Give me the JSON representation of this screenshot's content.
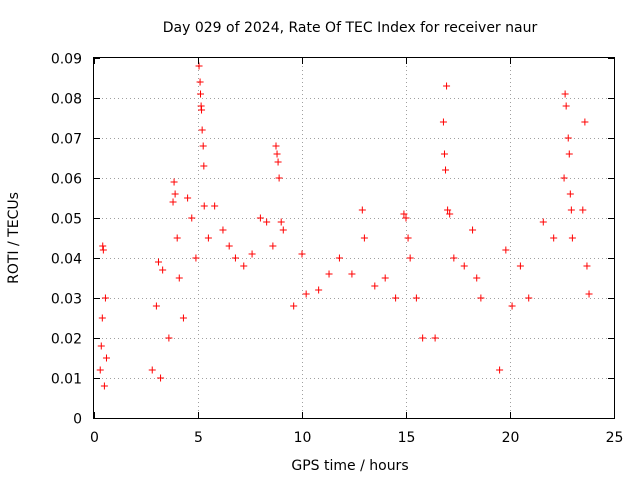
{
  "chart_data": {
    "type": "scatter",
    "title": "Day 029 of 2024, Rate Of TEC Index for receiver naur",
    "xlabel": "GPS time / hours",
    "ylabel": "ROTI / TECUs",
    "xlim": [
      0,
      25
    ],
    "ylim": [
      0,
      0.09
    ],
    "x_ticks": [
      0,
      5,
      10,
      15,
      20,
      25
    ],
    "x_tick_labels": [
      "0",
      "5",
      "10",
      "15",
      "20",
      "25"
    ],
    "y_ticks": [
      0,
      0.01,
      0.02,
      0.03,
      0.04,
      0.05,
      0.06,
      0.07,
      0.08,
      0.09
    ],
    "y_tick_labels": [
      "0",
      "0.01",
      "0.02",
      "0.03",
      "0.04",
      "0.05",
      "0.06",
      "0.07",
      "0.08",
      "0.09"
    ],
    "grid": true,
    "marker": "+",
    "color": "#ff0000",
    "series": [
      {
        "points": [
          [
            0.3,
            0.012
          ],
          [
            0.35,
            0.018
          ],
          [
            0.4,
            0.025
          ],
          [
            0.42,
            0.043
          ],
          [
            0.45,
            0.042
          ],
          [
            0.5,
            0.008
          ],
          [
            0.55,
            0.03
          ],
          [
            0.6,
            0.015
          ],
          [
            2.8,
            0.012
          ],
          [
            3.0,
            0.028
          ],
          [
            3.1,
            0.039
          ],
          [
            3.2,
            0.01
          ],
          [
            3.3,
            0.037
          ],
          [
            3.6,
            0.02
          ],
          [
            3.8,
            0.054
          ],
          [
            3.85,
            0.059
          ],
          [
            3.9,
            0.056
          ],
          [
            4.0,
            0.045
          ],
          [
            4.1,
            0.035
          ],
          [
            4.3,
            0.025
          ],
          [
            4.5,
            0.055
          ],
          [
            4.7,
            0.05
          ],
          [
            4.9,
            0.04
          ],
          [
            5.05,
            0.088
          ],
          [
            5.1,
            0.084
          ],
          [
            5.12,
            0.081
          ],
          [
            5.15,
            0.078
          ],
          [
            5.17,
            0.077
          ],
          [
            5.2,
            0.072
          ],
          [
            5.25,
            0.068
          ],
          [
            5.28,
            0.063
          ],
          [
            5.3,
            0.053
          ],
          [
            5.5,
            0.045
          ],
          [
            5.8,
            0.053
          ],
          [
            6.2,
            0.047
          ],
          [
            6.5,
            0.043
          ],
          [
            6.8,
            0.04
          ],
          [
            7.2,
            0.038
          ],
          [
            7.6,
            0.041
          ],
          [
            8.0,
            0.05
          ],
          [
            8.3,
            0.049
          ],
          [
            8.6,
            0.043
          ],
          [
            8.75,
            0.068
          ],
          [
            8.8,
            0.066
          ],
          [
            8.85,
            0.064
          ],
          [
            8.9,
            0.06
          ],
          [
            9.0,
            0.049
          ],
          [
            9.1,
            0.047
          ],
          [
            9.6,
            0.028
          ],
          [
            10.0,
            0.041
          ],
          [
            10.2,
            0.031
          ],
          [
            10.8,
            0.032
          ],
          [
            11.3,
            0.036
          ],
          [
            11.8,
            0.04
          ],
          [
            12.4,
            0.036
          ],
          [
            12.9,
            0.052
          ],
          [
            13.0,
            0.045
          ],
          [
            13.5,
            0.033
          ],
          [
            14.0,
            0.035
          ],
          [
            14.5,
            0.03
          ],
          [
            14.9,
            0.051
          ],
          [
            15.0,
            0.05
          ],
          [
            15.1,
            0.045
          ],
          [
            15.2,
            0.04
          ],
          [
            15.5,
            0.03
          ],
          [
            15.8,
            0.02
          ],
          [
            16.4,
            0.02
          ],
          [
            16.8,
            0.074
          ],
          [
            16.85,
            0.066
          ],
          [
            16.9,
            0.062
          ],
          [
            16.95,
            0.083
          ],
          [
            17.0,
            0.052
          ],
          [
            17.1,
            0.051
          ],
          [
            17.3,
            0.04
          ],
          [
            17.8,
            0.038
          ],
          [
            18.2,
            0.047
          ],
          [
            18.4,
            0.035
          ],
          [
            18.6,
            0.03
          ],
          [
            19.5,
            0.012
          ],
          [
            19.8,
            0.042
          ],
          [
            20.1,
            0.028
          ],
          [
            20.5,
            0.038
          ],
          [
            20.9,
            0.03
          ],
          [
            21.6,
            0.049
          ],
          [
            22.1,
            0.045
          ],
          [
            22.6,
            0.06
          ],
          [
            22.65,
            0.081
          ],
          [
            22.7,
            0.078
          ],
          [
            22.8,
            0.07
          ],
          [
            22.85,
            0.066
          ],
          [
            22.9,
            0.056
          ],
          [
            22.95,
            0.052
          ],
          [
            23.0,
            0.045
          ],
          [
            23.5,
            0.052
          ],
          [
            23.6,
            0.074
          ],
          [
            23.7,
            0.038
          ],
          [
            23.8,
            0.031
          ]
        ]
      }
    ]
  }
}
